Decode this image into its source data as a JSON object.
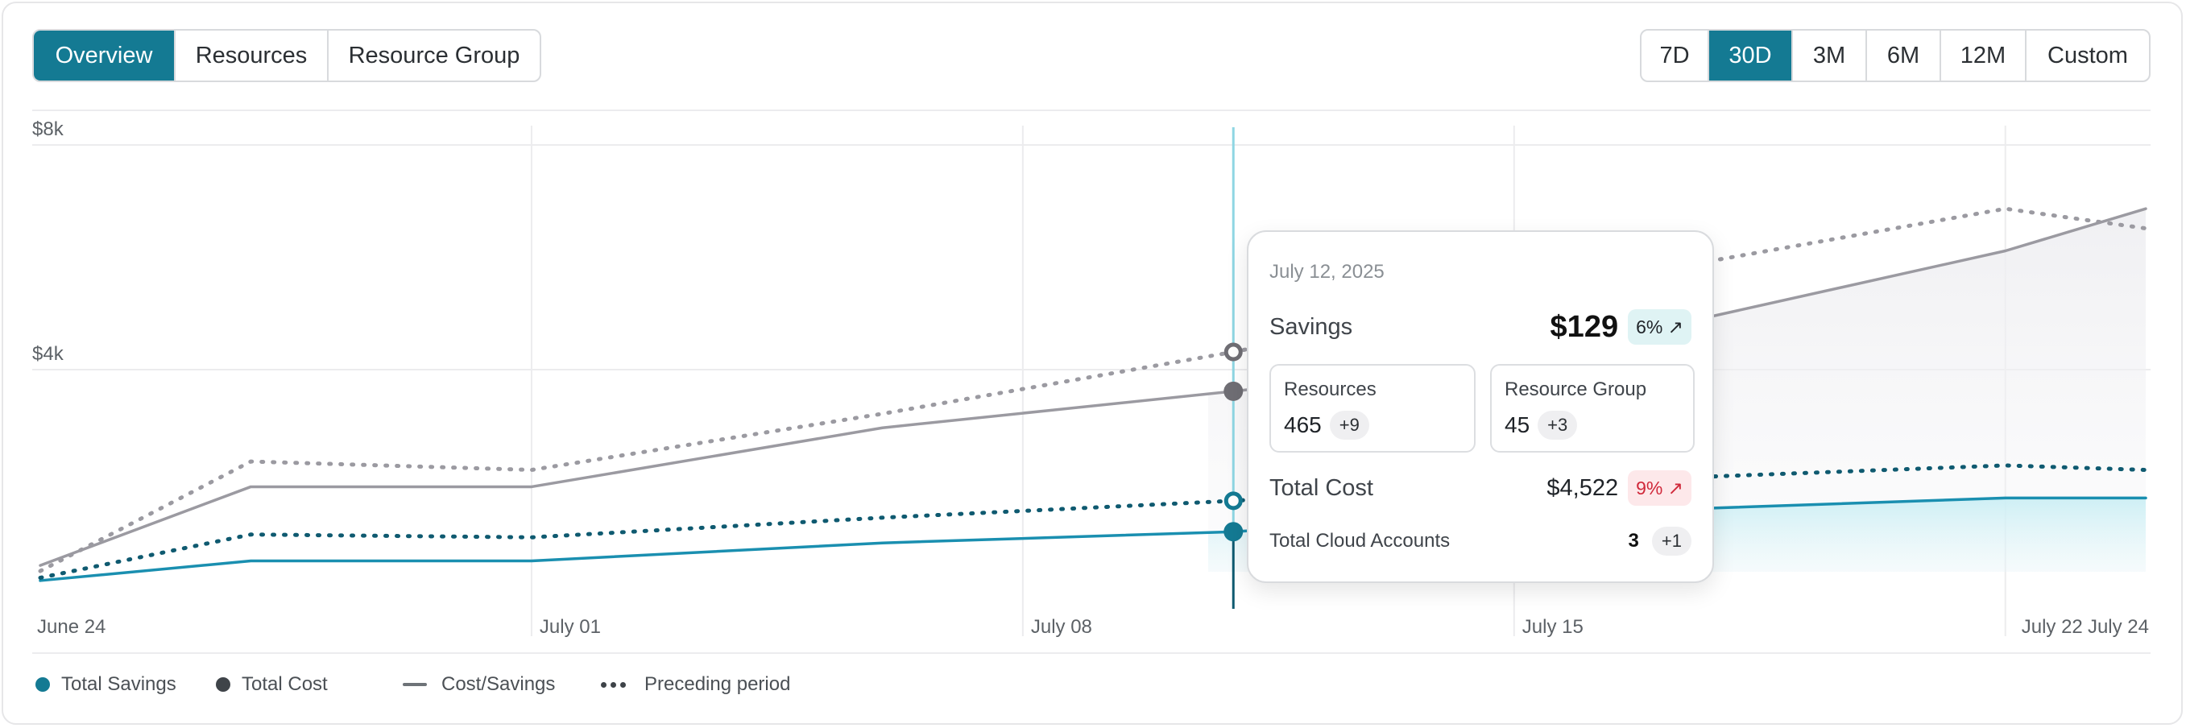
{
  "tabs": [
    {
      "label": "Overview",
      "active": true
    },
    {
      "label": "Resources",
      "active": false
    },
    {
      "label": "Resource Group",
      "active": false
    }
  ],
  "ranges": [
    {
      "label": "7D",
      "active": false
    },
    {
      "label": "30D",
      "active": true
    },
    {
      "label": "3M",
      "active": false
    },
    {
      "label": "6M",
      "active": false
    },
    {
      "label": "12M",
      "active": false
    },
    {
      "label": "Custom",
      "active": false
    }
  ],
  "colors": {
    "accent": "#147a93",
    "savings_line": "#1a8fb0",
    "savings_dotted": "#0f5a70",
    "cost_line": "#9b9aa1",
    "cost_dotted": "#9b9aa1",
    "cost_point": "#6f6e74",
    "cursor": "#8fd6e3"
  },
  "chart_data": {
    "type": "line",
    "y_ticks": [
      "$8k",
      "$4k"
    ],
    "y_tick_values": [
      8000,
      4000
    ],
    "ylim": [
      0,
      8000
    ],
    "x_ticks": [
      "June 24",
      "July 01",
      "July 08",
      "July 15",
      "July 22",
      "July 24"
    ],
    "x_tick_days": [
      0,
      7,
      14,
      21,
      28,
      30
    ],
    "grid_days": [
      7,
      14,
      21,
      28
    ],
    "series": [
      {
        "name": "Total Cost",
        "style": "solid",
        "points": [
          [
            0,
            400
          ],
          [
            3,
            1800
          ],
          [
            7,
            1800
          ],
          [
            12,
            2850
          ],
          [
            17,
            3500
          ],
          [
            21,
            4050
          ],
          [
            28,
            6000
          ],
          [
            30,
            6750
          ]
        ]
      },
      {
        "name": "Total Cost",
        "style": "dotted",
        "points": [
          [
            0,
            300
          ],
          [
            3,
            2250
          ],
          [
            7,
            2100
          ],
          [
            12,
            3100
          ],
          [
            17,
            4200
          ],
          [
            21,
            5200
          ],
          [
            28,
            6750
          ],
          [
            30,
            6400
          ]
        ]
      },
      {
        "name": "Total Savings",
        "style": "solid",
        "points": [
          [
            0,
            130
          ],
          [
            3,
            480
          ],
          [
            7,
            480
          ],
          [
            12,
            800
          ],
          [
            17,
            1000
          ],
          [
            21,
            1300
          ],
          [
            28,
            1600
          ],
          [
            30,
            1600
          ]
        ]
      },
      {
        "name": "Total Savings",
        "style": "dotted",
        "points": [
          [
            0,
            180
          ],
          [
            3,
            950
          ],
          [
            7,
            900
          ],
          [
            12,
            1250
          ],
          [
            17,
            1550
          ],
          [
            21,
            1850
          ],
          [
            28,
            2180
          ],
          [
            30,
            2100
          ]
        ]
      }
    ],
    "cursor_day": 17,
    "legend": [
      {
        "label": "Total Savings",
        "kind": "dot",
        "color": "#147a93"
      },
      {
        "label": "Total Cost",
        "kind": "dot",
        "color": "#3f4449"
      },
      {
        "label": "Cost/Savings",
        "kind": "line"
      },
      {
        "label": "Preceding period",
        "kind": "dots"
      }
    ]
  },
  "tooltip": {
    "date": "July 12, 2025",
    "savings_label": "Savings",
    "savings_value": "$129",
    "savings_change": "6% ↗",
    "resources_label": "Resources",
    "resources_value": "465",
    "resources_delta": "+9",
    "group_label": "Resource Group",
    "group_value": "45",
    "group_delta": "+3",
    "cost_label": "Total Cost",
    "cost_value": "$4,522",
    "cost_change": "9% ↗",
    "accounts_label": "Total Cloud Accounts",
    "accounts_value": "3",
    "accounts_delta": "+1"
  }
}
